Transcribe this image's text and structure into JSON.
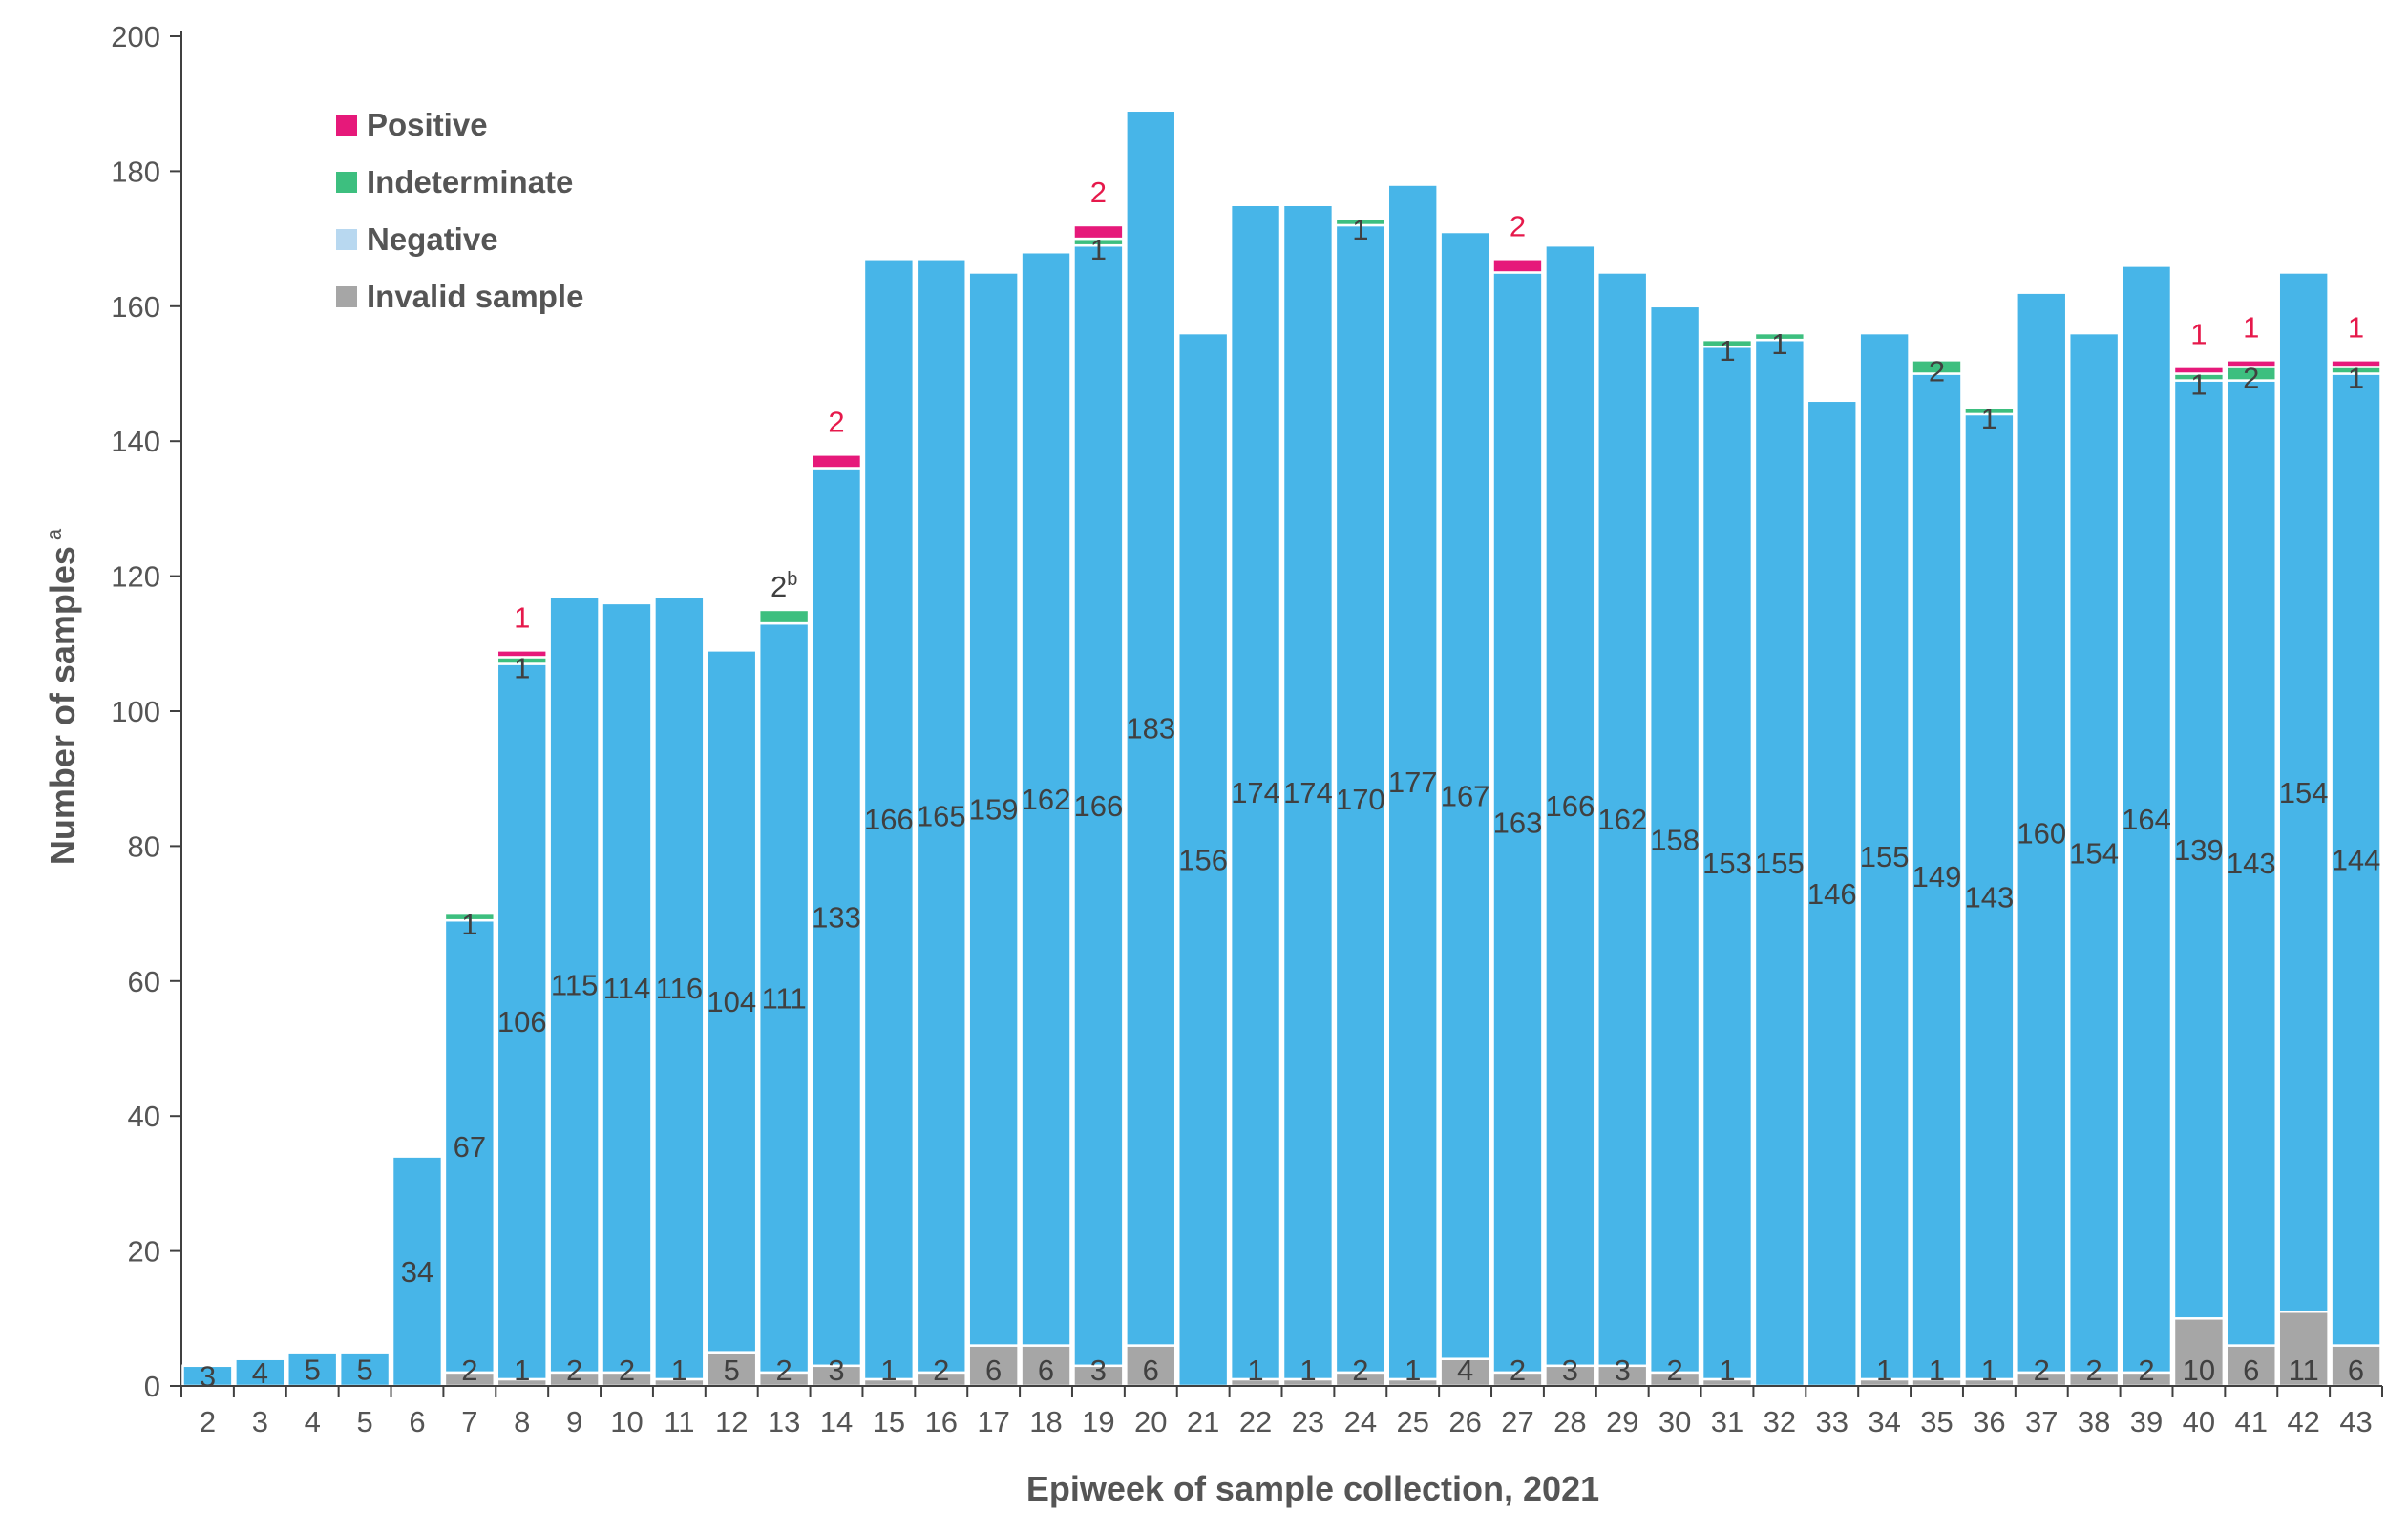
{
  "chart_data": {
    "type": "bar",
    "stacked": true,
    "xlabel": "Epiweek of sample collection, 2021",
    "ylabel": "Number of samples",
    "ylabel_superscript": "a",
    "ylim": [
      0,
      200
    ],
    "yticks": [
      0,
      20,
      40,
      60,
      80,
      100,
      120,
      140,
      160,
      180,
      200
    ],
    "legend_position": "top-left",
    "categories": [
      "2",
      "3",
      "4",
      "5",
      "6",
      "7",
      "8",
      "9",
      "10",
      "11",
      "12",
      "13",
      "14",
      "15",
      "16",
      "17",
      "18",
      "19",
      "20",
      "21",
      "22",
      "23",
      "24",
      "25",
      "26",
      "27",
      "28",
      "29",
      "30",
      "31",
      "32",
      "33",
      "34",
      "35",
      "36",
      "37",
      "38",
      "39",
      "40",
      "41",
      "42",
      "43"
    ],
    "series": [
      {
        "name": "Invalid sample",
        "color": "#a6a6a6",
        "values": [
          0,
          0,
          0,
          0,
          0,
          2,
          1,
          2,
          2,
          1,
          5,
          2,
          3,
          1,
          2,
          6,
          6,
          3,
          6,
          0,
          1,
          1,
          2,
          1,
          4,
          2,
          3,
          3,
          2,
          1,
          0,
          0,
          1,
          1,
          1,
          2,
          2,
          2,
          10,
          6,
          11,
          6
        ]
      },
      {
        "name": "Negative",
        "color": "#47b5e8",
        "values": [
          3,
          4,
          5,
          5,
          34,
          67,
          106,
          115,
          114,
          116,
          104,
          111,
          133,
          166,
          165,
          159,
          162,
          166,
          183,
          156,
          174,
          174,
          170,
          177,
          167,
          163,
          166,
          162,
          158,
          153,
          155,
          146,
          155,
          149,
          143,
          160,
          154,
          164,
          139,
          143,
          154,
          144
        ]
      },
      {
        "name": "Indeterminate",
        "color": "#3dbf7f",
        "values": [
          0,
          0,
          0,
          0,
          0,
          1,
          1,
          0,
          0,
          0,
          0,
          2,
          0,
          0,
          0,
          0,
          0,
          1,
          0,
          0,
          0,
          0,
          1,
          0,
          0,
          0,
          0,
          0,
          0,
          1,
          1,
          0,
          0,
          2,
          1,
          0,
          0,
          0,
          1,
          2,
          0,
          1
        ]
      },
      {
        "name": "Positive",
        "color": "#e6197a",
        "values": [
          0,
          0,
          0,
          0,
          0,
          0,
          1,
          0,
          0,
          0,
          0,
          0,
          2,
          0,
          0,
          0,
          0,
          2,
          0,
          0,
          0,
          0,
          0,
          0,
          0,
          2,
          0,
          0,
          0,
          0,
          0,
          0,
          0,
          0,
          0,
          0,
          0,
          0,
          1,
          1,
          0,
          1
        ]
      }
    ],
    "legend": [
      "Positive",
      "Indeterminate",
      "Negative",
      "Invalid sample"
    ],
    "annotations": {
      "indeterminate_week13": "2",
      "indeterminate_week13_superscript": "b"
    }
  }
}
